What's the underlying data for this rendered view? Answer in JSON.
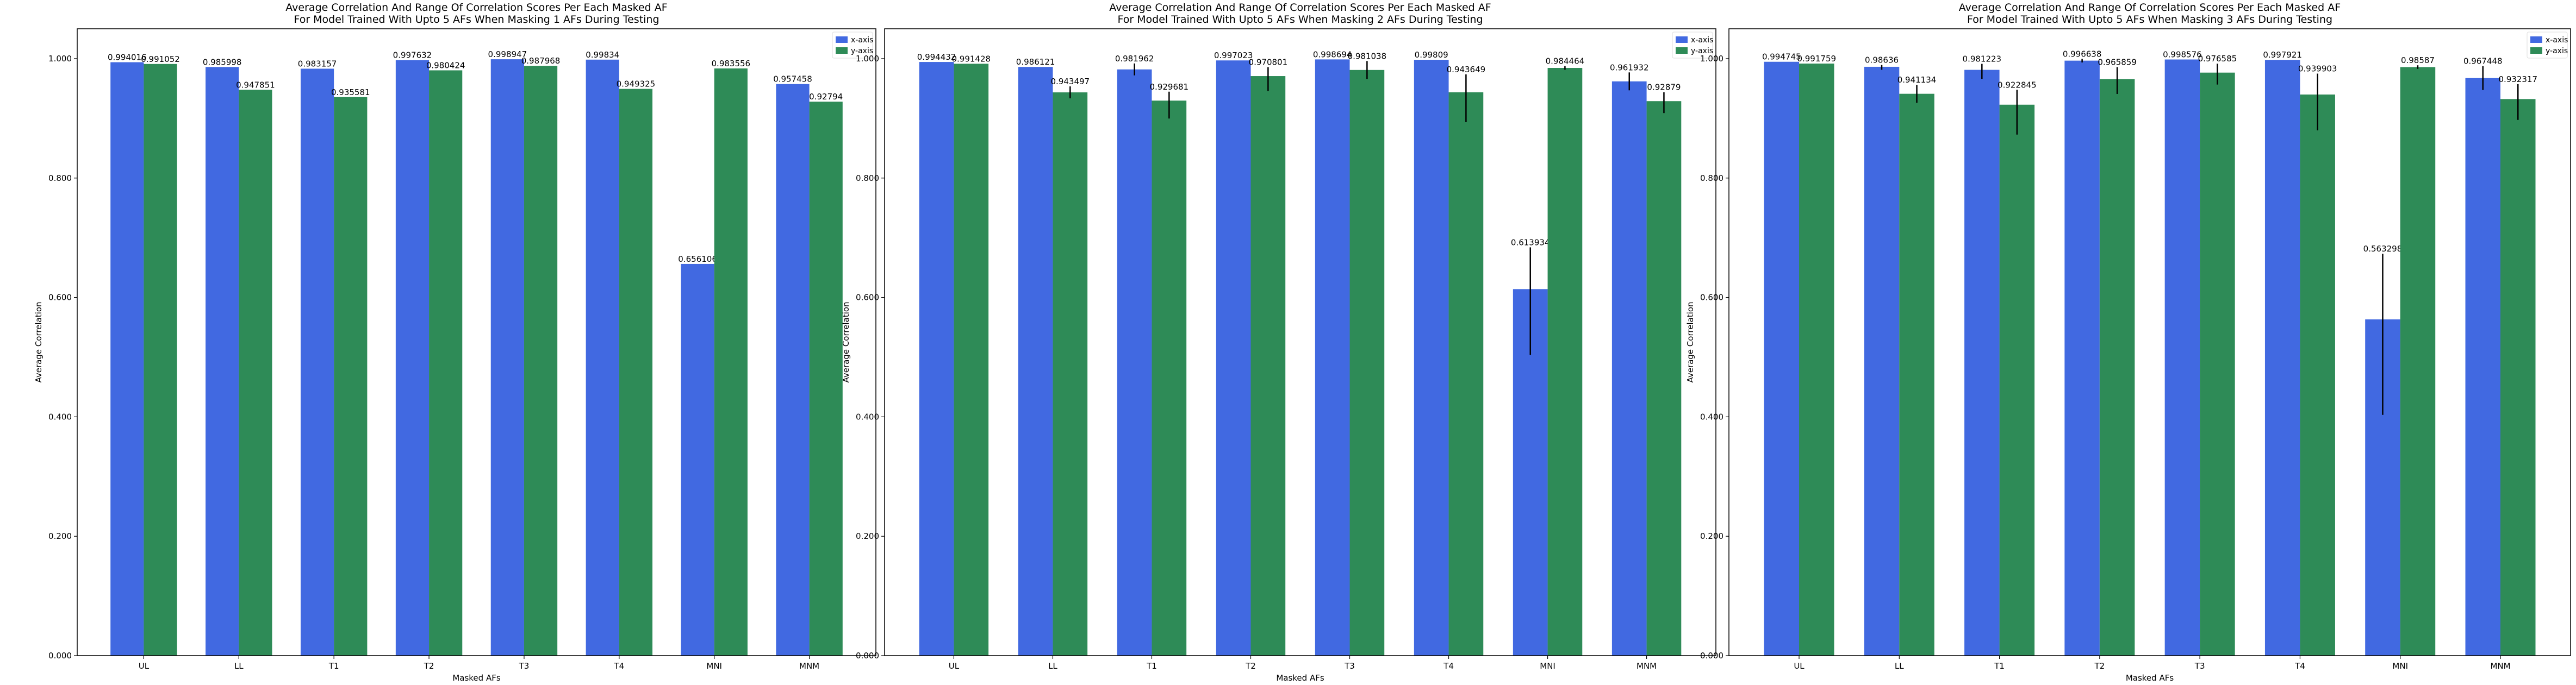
{
  "colors": {
    "x_axis": "#4169E1",
    "y_axis": "#2E8B57",
    "error_bar": "#000000"
  },
  "chart_data": [
    {
      "type": "bar",
      "title": "Average Correlation And Range Of Correlation Scores Per Each Masked AF\nFor Model Trained With Upto 5 AFs When Masking 1 AFs During Testing",
      "xlabel": "Masked AFs",
      "ylabel": "Average Correlation",
      "ylim": [
        0,
        1.05
      ],
      "yticks": [
        "0.000",
        "0.200",
        "0.400",
        "0.600",
        "0.800",
        "1.000"
      ],
      "legend_position": "top-right",
      "categories": [
        "UL",
        "LL",
        "T1",
        "T2",
        "T3",
        "T4",
        "MNI",
        "MNM"
      ],
      "series": [
        {
          "name": "x-axis",
          "values": [
            0.994016,
            0.985998,
            0.983157,
            0.997632,
            0.998947,
            0.99834,
            0.656106,
            0.957458
          ],
          "labels": [
            "0.994016",
            "0.985998",
            "0.983157",
            "0.997632",
            "0.998947",
            "0.99834",
            "0.656106",
            "0.957458"
          ],
          "err_low": [
            0,
            0,
            0,
            0,
            0,
            0,
            0,
            0
          ],
          "err_high": [
            0,
            0,
            0,
            0,
            0,
            0,
            0,
            0
          ]
        },
        {
          "name": "y-axis",
          "values": [
            0.991052,
            0.947851,
            0.935581,
            0.980424,
            0.987968,
            0.949325,
            0.983556,
            0.92794
          ],
          "labels": [
            "0.991052",
            "0.947851",
            "0.935581",
            "0.980424",
            "0.987968",
            "0.949325",
            "0.983556",
            "0.92794"
          ],
          "err_low": [
            0,
            0,
            0,
            0,
            0,
            0,
            0,
            0
          ],
          "err_high": [
            0,
            0,
            0,
            0,
            0,
            0,
            0,
            0
          ]
        }
      ]
    },
    {
      "type": "bar",
      "title": "Average Correlation And Range Of Correlation Scores Per Each Masked AF\nFor Model Trained With Upto 5 AFs When Masking 2 AFs During Testing",
      "xlabel": "Masked AFs",
      "ylabel": "Average Correlation",
      "ylim": [
        0,
        1.05
      ],
      "yticks": [
        "0.000",
        "0.200",
        "0.400",
        "0.600",
        "0.800",
        "1.000"
      ],
      "legend_position": "top-right",
      "categories": [
        "UL",
        "LL",
        "T1",
        "T2",
        "T3",
        "T4",
        "MNI",
        "MNM"
      ],
      "series": [
        {
          "name": "x-axis",
          "values": [
            0.994432,
            0.986121,
            0.981962,
            0.997023,
            0.998694,
            0.99809,
            0.613934,
            0.961932
          ],
          "labels": [
            "0.994432",
            "0.986121",
            "0.981962",
            "0.997023",
            "0.998694",
            "0.99809",
            "0.613934",
            "0.961932"
          ],
          "err_low": [
            0,
            0,
            0.01,
            0,
            0,
            0,
            0.11,
            0.015
          ],
          "err_high": [
            0,
            0,
            0.01,
            0,
            0,
            0,
            0.07,
            0.015
          ]
        },
        {
          "name": "y-axis",
          "values": [
            0.991428,
            0.943497,
            0.929681,
            0.970801,
            0.981038,
            0.943649,
            0.984464,
            0.92879
          ],
          "labels": [
            "0.991428",
            "0.943497",
            "0.929681",
            "0.970801",
            "0.981038",
            "0.943649",
            "0.984464",
            "0.92879"
          ],
          "err_low": [
            0,
            0.01,
            0.03,
            0.025,
            0.015,
            0.05,
            0.003,
            0.02
          ],
          "err_high": [
            0,
            0.01,
            0.015,
            0.015,
            0.015,
            0.03,
            0.003,
            0.015
          ]
        }
      ]
    },
    {
      "type": "bar",
      "title": "Average Correlation And Range Of Correlation Scores Per Each Masked AF\nFor Model Trained With Upto 5 AFs When Masking 3 AFs During Testing",
      "xlabel": "Masked AFs",
      "ylabel": "Average Correlation",
      "ylim": [
        0,
        1.05
      ],
      "yticks": [
        "0.000",
        "0.200",
        "0.400",
        "0.600",
        "0.800",
        "1.000"
      ],
      "legend_position": "top-right",
      "categories": [
        "UL",
        "LL",
        "T1",
        "T2",
        "T3",
        "T4",
        "MNI",
        "MNM"
      ],
      "series": [
        {
          "name": "x-axis",
          "values": [
            0.994745,
            0.98636,
            0.981223,
            0.996638,
            0.998576,
            0.997921,
            0.563298,
            0.967448
          ],
          "labels": [
            "0.994745",
            "0.98636",
            "0.981223",
            "0.996638",
            "0.998576",
            "0.997921",
            "0.563298",
            "0.967448"
          ],
          "err_low": [
            0,
            0.005,
            0.015,
            0.003,
            0,
            0,
            0.16,
            0.02
          ],
          "err_high": [
            0,
            0.003,
            0.01,
            0.003,
            0,
            0,
            0.11,
            0.02
          ]
        },
        {
          "name": "y-axis",
          "values": [
            0.991759,
            0.941134,
            0.922845,
            0.965859,
            0.976585,
            0.939903,
            0.98587,
            0.932317
          ],
          "labels": [
            "0.991759",
            "0.941134",
            "0.922845",
            "0.965859",
            "0.976585",
            "0.939903",
            "0.98587",
            "0.932317"
          ],
          "err_low": [
            0,
            0.015,
            0.05,
            0.025,
            0.02,
            0.06,
            0.003,
            0.035
          ],
          "err_high": [
            0,
            0.015,
            0.025,
            0.02,
            0.015,
            0.035,
            0.003,
            0.025
          ]
        }
      ]
    }
  ]
}
